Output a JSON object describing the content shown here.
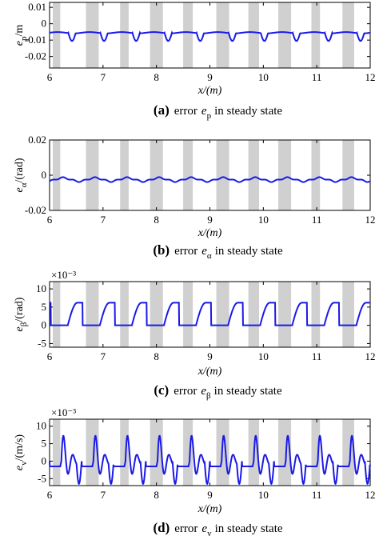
{
  "chart_data": [
    {
      "type": "line",
      "id": "a",
      "xlim": [
        6,
        12
      ],
      "ylim": [
        -0.027,
        0.013
      ],
      "yticks": [
        "0.01",
        "0",
        "-0.01",
        "-0.02"
      ],
      "xticks": [
        "6",
        "7",
        "8",
        "9",
        "10",
        "11",
        "12"
      ],
      "ylabel_main": "e",
      "ylabel_sub": "p",
      "ylabel_unit": "/m",
      "xlabel": "x/(m)",
      "caption_letter": "(a)",
      "caption_pre": "error",
      "caption_sym": "e",
      "caption_sub": "p",
      "caption_post": "in steady state",
      "exponent": "",
      "shaded_bands": [
        [
          6.06,
          6.2
        ],
        [
          6.68,
          6.92
        ],
        [
          7.32,
          7.48
        ],
        [
          7.88,
          8.12
        ],
        [
          8.5,
          8.68
        ],
        [
          9.12,
          9.36
        ],
        [
          9.72,
          9.92
        ],
        [
          10.28,
          10.52
        ],
        [
          10.9,
          11.06
        ],
        [
          11.48,
          11.7
        ]
      ],
      "series": [
        {
          "color": "#1a1ae6",
          "pattern": "dip",
          "values": {
            "base": -0.0055,
            "dip": -0.0105,
            "period": 0.6,
            "dip_start": 6.35
          }
        }
      ]
    },
    {
      "type": "line",
      "id": "b",
      "xlim": [
        6,
        12
      ],
      "ylim": [
        -0.02,
        0.02
      ],
      "yticks": [
        "0.02",
        "0",
        "-0.02"
      ],
      "xticks": [
        "6",
        "7",
        "8",
        "9",
        "10",
        "11",
        "12"
      ],
      "ylabel_main": "e",
      "ylabel_sub": "α",
      "ylabel_unit": "/(rad)",
      "xlabel": "x/(m)",
      "caption_letter": "(b)",
      "caption_pre": "error",
      "caption_sym": "e",
      "caption_sub": "α",
      "caption_post": "in steady state",
      "exponent": "",
      "shaded_bands": [
        [
          6.06,
          6.2
        ],
        [
          6.68,
          6.92
        ],
        [
          7.32,
          7.48
        ],
        [
          7.88,
          8.12
        ],
        [
          8.5,
          8.68
        ],
        [
          9.12,
          9.36
        ],
        [
          9.72,
          9.92
        ],
        [
          10.28,
          10.52
        ],
        [
          10.9,
          11.06
        ],
        [
          11.48,
          11.7
        ]
      ],
      "series": [
        {
          "color": "#1a1ae6",
          "pattern": "wave",
          "values": {
            "base": -0.0025,
            "amp": 0.001,
            "period": 0.6
          }
        }
      ]
    },
    {
      "type": "line",
      "id": "c",
      "xlim": [
        6,
        12
      ],
      "ylim": [
        -6,
        12
      ],
      "yticks": [
        "10",
        "5",
        "0",
        "-5"
      ],
      "xticks": [
        "6",
        "7",
        "8",
        "9",
        "10",
        "11",
        "12"
      ],
      "ylabel_main": "e",
      "ylabel_sub": "β",
      "ylabel_unit": "/(rad)",
      "xlabel": "x/(m)",
      "caption_letter": "(c)",
      "caption_pre": "error",
      "caption_sym": "e",
      "caption_sub": "β",
      "caption_post": "in steady state",
      "exponent": "×10⁻³",
      "shaded_bands": [
        [
          6.06,
          6.2
        ],
        [
          6.68,
          6.92
        ],
        [
          7.32,
          7.48
        ],
        [
          7.88,
          8.12
        ],
        [
          8.5,
          8.68
        ],
        [
          9.12,
          9.36
        ],
        [
          9.72,
          9.92
        ],
        [
          10.28,
          10.52
        ],
        [
          10.9,
          11.06
        ],
        [
          11.48,
          11.7
        ]
      ],
      "series": [
        {
          "color": "#1a1ae6",
          "pattern": "pulse",
          "values": {
            "peak": 6.2,
            "period": 0.6,
            "rise_start": 6.34,
            "rise_end": 6.52,
            "fall": 6.62
          }
        }
      ]
    },
    {
      "type": "line",
      "id": "d",
      "xlim": [
        6,
        12
      ],
      "ylim": [
        -7,
        12
      ],
      "yticks": [
        "10",
        "5",
        "0",
        "-5"
      ],
      "xticks": [
        "6",
        "7",
        "8",
        "9",
        "10",
        "11",
        "12"
      ],
      "ylabel_main": "e",
      "ylabel_sub": "v",
      "ylabel_unit": "/(m/s)",
      "xlabel": "x/(m)",
      "caption_letter": "(d)",
      "caption_pre": "error",
      "caption_sym": "e",
      "caption_sub": "v",
      "caption_post": "in steady state",
      "exponent": "×10⁻³",
      "shaded_bands": [
        [
          6.06,
          6.2
        ],
        [
          6.68,
          6.92
        ],
        [
          7.32,
          7.48
        ],
        [
          7.88,
          8.12
        ],
        [
          8.5,
          8.68
        ],
        [
          9.12,
          9.36
        ],
        [
          9.72,
          9.92
        ],
        [
          10.28,
          10.52
        ],
        [
          10.9,
          11.06
        ],
        [
          11.48,
          11.7
        ]
      ],
      "series": [
        {
          "color": "#1a1ae6",
          "pattern": "oscill",
          "values": {
            "period": 0.6,
            "start": 6.2
          }
        }
      ]
    }
  ]
}
